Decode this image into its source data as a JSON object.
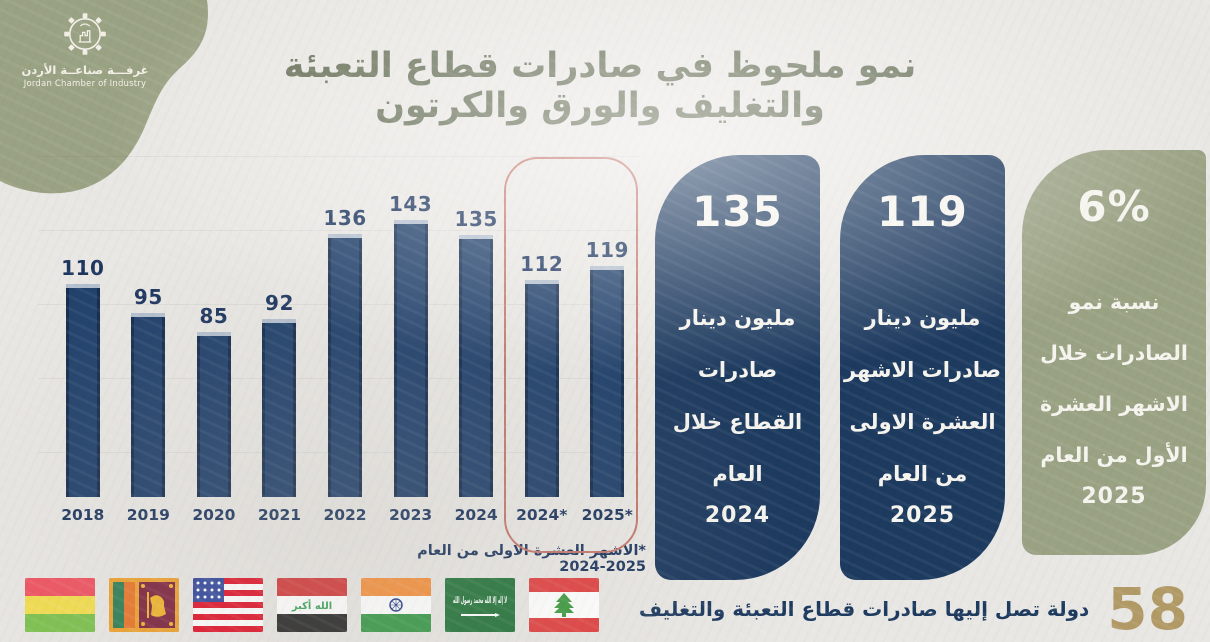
{
  "logo": {
    "org_ar": "غرفـــة صناعــة الأردن",
    "org_en": "Jordan Chamber of Industry"
  },
  "title": "نمو ملحوظ في صادرات قطاع التعبئة والتغليف والورق والكرتون",
  "chart_data": {
    "type": "bar",
    "title": "صادرات قطاع التعبئة والتغليف والورق والكرتون",
    "categories": [
      "2018",
      "2019",
      "2020",
      "2021",
      "2022",
      "2023",
      "2024",
      "2024*",
      "2025*"
    ],
    "values": [
      110,
      95,
      85,
      92,
      136,
      143,
      135,
      112,
      119
    ],
    "unit": "مليون دينار",
    "xlabel": "",
    "ylabel": "",
    "ylim": [
      0,
      150
    ],
    "grid": "faint-horizontal",
    "bar_color": "#20406b",
    "highlight": {
      "categories": [
        "2024*",
        "2025*"
      ],
      "style": "red-rounded-outline",
      "color": "#c4766b"
    },
    "footnote": "*الاشهر العشرة الاولى من العام 2025-2024"
  },
  "panels": [
    {
      "number": "135",
      "lines": [
        "مليون دينار",
        "صادرات",
        "القطاع خلال",
        "العام"
      ],
      "year": "2024",
      "color": "#1d3a5f"
    },
    {
      "number": "119",
      "lines": [
        "مليون دينار",
        "صادرات الاشهر",
        "العشرة الاولى",
        "من العام"
      ],
      "year": "2025",
      "color": "#1d3a5f"
    },
    {
      "number": "6%",
      "lines": [
        "نسبة نمو",
        "الصادرات خلال",
        "الاشهر العشرة",
        "الأول من العام"
      ],
      "year": "2025",
      "color": "#9aa284"
    }
  ],
  "flags": [
    "Bolivia",
    "Sri Lanka",
    "United States",
    "Iraq",
    "India",
    "Saudi Arabia",
    "Lebanon"
  ],
  "footer": {
    "count": "58",
    "label": "دولة تصل إليها صادرات قطاع التعبئة  والتغليف"
  },
  "colors": {
    "navy": "#1d3a5f",
    "sage": "#9aa284",
    "gold": "#b29a66",
    "paper": "#e9e7e3",
    "red_outline": "#c4766b",
    "title_text": "#656e55"
  }
}
